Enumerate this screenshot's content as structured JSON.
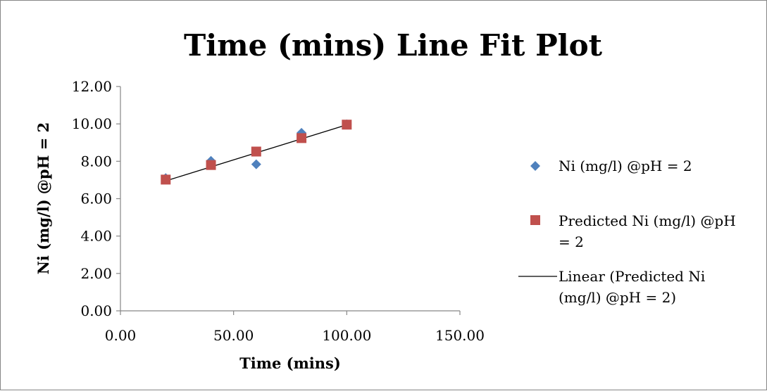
{
  "chart_data": {
    "type": "scatter",
    "title": "Time (mins) Line Fit  Plot",
    "xlabel": "Time (mins)",
    "ylabel": "Ni (mg/l) @pH = 2",
    "xlim": [
      0,
      150
    ],
    "ylim": [
      0,
      12
    ],
    "x_ticks": [
      "0.00",
      "50.00",
      "100.00",
      "150.00"
    ],
    "y_ticks": [
      "0.00",
      "2.00",
      "4.00",
      "6.00",
      "8.00",
      "10.00",
      "12.00"
    ],
    "grid": false,
    "legend_position": "right",
    "series": [
      {
        "name": "Ni (mg/l) @pH = 2",
        "marker": "diamond",
        "color": "#4f81bd",
        "x": [
          20,
          40,
          60,
          80,
          100
        ],
        "y": [
          7.1,
          8.02,
          7.84,
          9.52,
          9.98
        ]
      },
      {
        "name": "Predicted Ni (mg/l) @pH = 2",
        "marker": "square",
        "color": "#c0504d",
        "x": [
          20,
          40,
          60,
          80,
          100
        ],
        "y": [
          7.02,
          7.8,
          8.52,
          9.24,
          9.96
        ]
      }
    ],
    "trendline": {
      "name": "Linear (Predicted Ni (mg/l) @pH = 2)",
      "color": "#000000",
      "x": [
        20,
        100
      ],
      "y": [
        6.95,
        9.95
      ]
    }
  },
  "legend": {
    "entries": [
      {
        "lines": [
          "Ni (mg/l) @pH = 2"
        ]
      },
      {
        "lines": [
          "Predicted Ni (mg/l) @pH",
          "= 2"
        ]
      },
      {
        "lines": [
          "Linear (Predicted Ni",
          "(mg/l) @pH = 2)"
        ]
      }
    ]
  }
}
